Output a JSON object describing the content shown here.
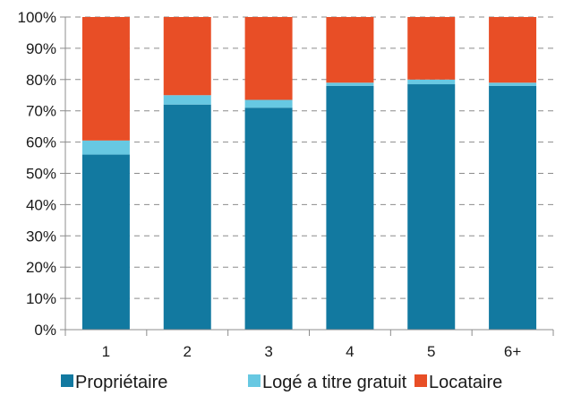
{
  "chart_data": {
    "type": "bar",
    "stacked": true,
    "categories": [
      "1",
      "2",
      "3",
      "4",
      "5",
      "6+"
    ],
    "series": [
      {
        "name": "Propriétaire",
        "values": [
          56,
          72,
          71,
          78,
          78.5,
          78
        ],
        "color": "#1279a0"
      },
      {
        "name": "Logé a titre gratuit",
        "values": [
          4.5,
          3,
          2.5,
          1,
          1.5,
          1
        ],
        "color": "#67c8e2"
      },
      {
        "name": "Locataire",
        "values": [
          39.5,
          25,
          26.5,
          21,
          20,
          21
        ],
        "color": "#e84e26"
      }
    ],
    "ylim": [
      0,
      100
    ],
    "yticks": [
      "0%",
      "10%",
      "20%",
      "30%",
      "40%",
      "50%",
      "60%",
      "70%",
      "80%",
      "90%",
      "100%"
    ],
    "grid": true,
    "grid_style": "dashed",
    "legend_position": "bottom",
    "title": "",
    "xlabel": "",
    "ylabel": ""
  }
}
